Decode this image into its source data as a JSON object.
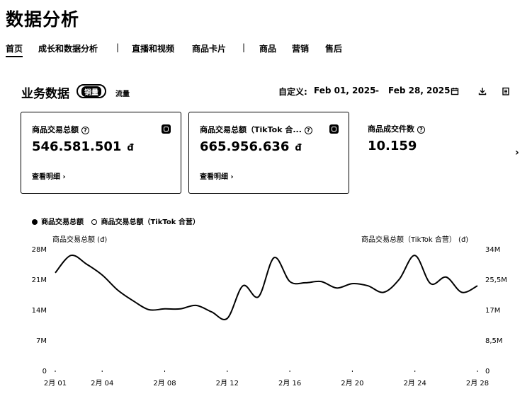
{
  "page_title": "数据分析",
  "nav": {
    "items": [
      {
        "label": "首页",
        "active": true
      },
      {
        "label": "成长和数据分析"
      },
      {
        "label": "直播和视频"
      },
      {
        "label": "商品卡片"
      },
      {
        "label": "商品"
      },
      {
        "label": "营销"
      },
      {
        "label": "售后"
      }
    ],
    "separator": "|"
  },
  "section": {
    "title": "业务数据",
    "tag_active": "销量",
    "tag_other": "流量"
  },
  "date_range": {
    "label": "自定义:",
    "start": "Feb 01, 2025",
    "separator": "-",
    "end": "Feb 28, 2025",
    "icons": [
      "calendar-icon",
      "download-icon",
      "report-icon"
    ]
  },
  "cards": [
    {
      "label": "商品交易总额",
      "help": "?",
      "value": "546.581.501",
      "currency": "đ",
      "link": "查看明细 ›",
      "selected": true
    },
    {
      "label": "商品交易总额（TikTok 合...",
      "help": "?",
      "value": "665.956.636",
      "currency": "đ",
      "link": "查看明细 ›",
      "selected": true
    },
    {
      "label": "商品成交件数",
      "help": "?",
      "value": "10.159",
      "selected": false
    }
  ],
  "scroll_indicator": "›",
  "chart_data": {
    "type": "line",
    "legend": [
      {
        "name": "商品交易总额",
        "marker": "filled"
      },
      {
        "name": "商品交易总额（TikTok 合营）",
        "marker": "ring"
      }
    ],
    "ylabel_left": "商品交易总额 (đ)",
    "ylabel_right": "商品交易总额（TikTok 合营） (đ)",
    "y_left_ticks": [
      "0",
      "7M",
      "14M",
      "21M",
      "28M"
    ],
    "y_right_ticks": [
      "0",
      "8,5M",
      "17M",
      "25,5M",
      "34M"
    ],
    "ylim_left": [
      0,
      28
    ],
    "x_ticks": [
      "2月 01",
      "2月 04",
      "2月 08",
      "2月 12",
      "2月 16",
      "2月 20",
      "2月 24",
      "2月 28"
    ],
    "x_tick_days": [
      1,
      4,
      8,
      12,
      16,
      20,
      24,
      28
    ],
    "x_days": [
      1,
      2,
      3,
      4,
      5,
      6,
      7,
      8,
      9,
      10,
      11,
      12,
      13,
      14,
      15,
      16,
      17,
      18,
      19,
      20,
      21,
      22,
      23,
      24,
      25,
      26,
      27,
      28
    ],
    "series": [
      {
        "name": "商品交易总额",
        "values": [
          22.5,
          26.5,
          24.5,
          22.0,
          18.5,
          16.0,
          14.0,
          14.2,
          14.2,
          15.0,
          13.5,
          12.0,
          19.5,
          17.0,
          26.0,
          20.5,
          20.2,
          20.5,
          19.0,
          20.0,
          19.5,
          18.0,
          21.0,
          26.5,
          20.0,
          21.5,
          18.0,
          19.5
        ]
      }
    ],
    "grid": false
  }
}
